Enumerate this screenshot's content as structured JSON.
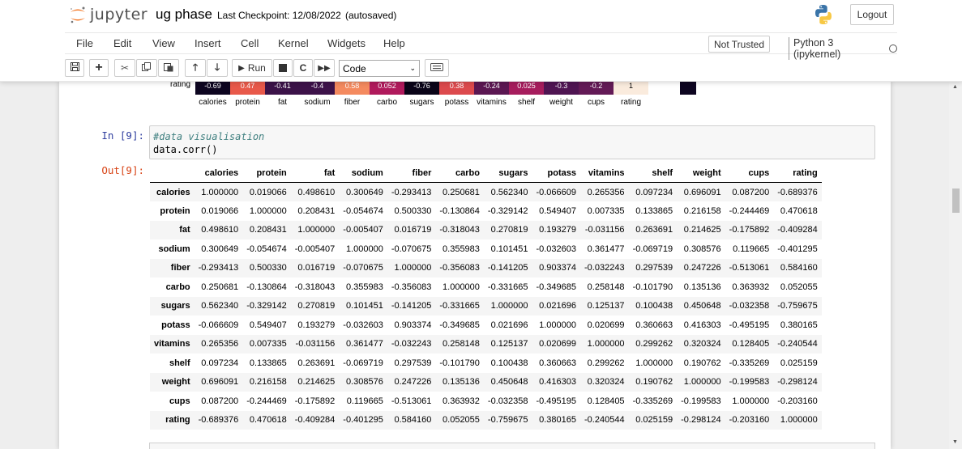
{
  "header": {
    "logo_text": "jupyter",
    "notebook_name": "ug phase",
    "checkpoint": "Last Checkpoint: 12/08/2022",
    "autosave": "(autosaved)",
    "logout_label": "Logout"
  },
  "menu": {
    "items": [
      "File",
      "Edit",
      "View",
      "Insert",
      "Cell",
      "Kernel",
      "Widgets",
      "Help"
    ],
    "trust_label": "Not Trusted",
    "kernel_label": "Python 3 (ipykernel)"
  },
  "toolbar": {
    "run_label": "Run",
    "cell_type": "Code"
  },
  "heatmap": {
    "row_label": "rating",
    "cells": [
      {
        "text": "-0.69",
        "color": "#0d0520"
      },
      {
        "text": "0.47",
        "color": "#e8594a"
      },
      {
        "text": "-0.41",
        "color": "#3b1248"
      },
      {
        "text": "-0.4",
        "color": "#3d1249"
      },
      {
        "text": "0.58",
        "color": "#f48a5f"
      },
      {
        "text": "0.052",
        "color": "#b01a5c"
      },
      {
        "text": "-0.76",
        "color": "#0a0418"
      },
      {
        "text": "0.38",
        "color": "#dc4a4d"
      },
      {
        "text": "-0.24",
        "color": "#5b1752"
      },
      {
        "text": "0.025",
        "color": "#a61d5d"
      },
      {
        "text": "-0.3",
        "color": "#4f1552"
      },
      {
        "text": "-0.2",
        "color": "#631a56"
      },
      {
        "text": "1",
        "color": "#faebdd"
      }
    ],
    "xlabels": [
      "calories",
      "protein",
      "fat",
      "sodium",
      "fiber",
      "carbo",
      "sugars",
      "potass",
      "vitamins",
      "shelf",
      "weight",
      "cups",
      "rating"
    ]
  },
  "cell": {
    "in_prompt": "In [9]:",
    "comment": "#data visualisation",
    "code": "data.corr()",
    "out_prompt": "Out[9]:"
  },
  "dataframe": {
    "columns": [
      "calories",
      "protein",
      "fat",
      "sodium",
      "fiber",
      "carbo",
      "sugars",
      "potass",
      "vitamins",
      "shelf",
      "weight",
      "cups",
      "rating"
    ],
    "rows": [
      {
        "index": "calories",
        "values": [
          "1.000000",
          "0.019066",
          "0.498610",
          "0.300649",
          "-0.293413",
          "0.250681",
          "0.562340",
          "-0.066609",
          "0.265356",
          "0.097234",
          "0.696091",
          "0.087200",
          "-0.689376"
        ]
      },
      {
        "index": "protein",
        "values": [
          "0.019066",
          "1.000000",
          "0.208431",
          "-0.054674",
          "0.500330",
          "-0.130864",
          "-0.329142",
          "0.549407",
          "0.007335",
          "0.133865",
          "0.216158",
          "-0.244469",
          "0.470618"
        ]
      },
      {
        "index": "fat",
        "values": [
          "0.498610",
          "0.208431",
          "1.000000",
          "-0.005407",
          "0.016719",
          "-0.318043",
          "0.270819",
          "0.193279",
          "-0.031156",
          "0.263691",
          "0.214625",
          "-0.175892",
          "-0.409284"
        ]
      },
      {
        "index": "sodium",
        "values": [
          "0.300649",
          "-0.054674",
          "-0.005407",
          "1.000000",
          "-0.070675",
          "0.355983",
          "0.101451",
          "-0.032603",
          "0.361477",
          "-0.069719",
          "0.308576",
          "0.119665",
          "-0.401295"
        ]
      },
      {
        "index": "fiber",
        "values": [
          "-0.293413",
          "0.500330",
          "0.016719",
          "-0.070675",
          "1.000000",
          "-0.356083",
          "-0.141205",
          "0.903374",
          "-0.032243",
          "0.297539",
          "0.247226",
          "-0.513061",
          "0.584160"
        ]
      },
      {
        "index": "carbo",
        "values": [
          "0.250681",
          "-0.130864",
          "-0.318043",
          "0.355983",
          "-0.356083",
          "1.000000",
          "-0.331665",
          "-0.349685",
          "0.258148",
          "-0.101790",
          "0.135136",
          "0.363932",
          "0.052055"
        ]
      },
      {
        "index": "sugars",
        "values": [
          "0.562340",
          "-0.329142",
          "0.270819",
          "0.101451",
          "-0.141205",
          "-0.331665",
          "1.000000",
          "0.021696",
          "0.125137",
          "0.100438",
          "0.450648",
          "-0.032358",
          "-0.759675"
        ]
      },
      {
        "index": "potass",
        "values": [
          "-0.066609",
          "0.549407",
          "0.193279",
          "-0.032603",
          "0.903374",
          "-0.349685",
          "0.021696",
          "1.000000",
          "0.020699",
          "0.360663",
          "0.416303",
          "-0.495195",
          "0.380165"
        ]
      },
      {
        "index": "vitamins",
        "values": [
          "0.265356",
          "0.007335",
          "-0.031156",
          "0.361477",
          "-0.032243",
          "0.258148",
          "0.125137",
          "0.020699",
          "1.000000",
          "0.299262",
          "0.320324",
          "0.128405",
          "-0.240544"
        ]
      },
      {
        "index": "shelf",
        "values": [
          "0.097234",
          "0.133865",
          "0.263691",
          "-0.069719",
          "0.297539",
          "-0.101790",
          "0.100438",
          "0.360663",
          "0.299262",
          "1.000000",
          "0.190762",
          "-0.335269",
          "0.025159"
        ]
      },
      {
        "index": "weight",
        "values": [
          "0.696091",
          "0.216158",
          "0.214625",
          "0.308576",
          "0.247226",
          "0.135136",
          "0.450648",
          "0.416303",
          "0.320324",
          "0.190762",
          "1.000000",
          "-0.199583",
          "-0.298124"
        ]
      },
      {
        "index": "cups",
        "values": [
          "0.087200",
          "-0.244469",
          "-0.175892",
          "0.119665",
          "-0.513061",
          "0.363932",
          "-0.032358",
          "-0.495195",
          "0.128405",
          "-0.335269",
          "-0.199583",
          "1.000000",
          "-0.203160"
        ]
      },
      {
        "index": "rating",
        "values": [
          "-0.689376",
          "0.470618",
          "-0.409284",
          "-0.401295",
          "0.584160",
          "0.052055",
          "-0.759675",
          "0.380165",
          "-0.240544",
          "0.025159",
          "-0.298124",
          "-0.203160",
          "1.000000"
        ]
      }
    ]
  }
}
